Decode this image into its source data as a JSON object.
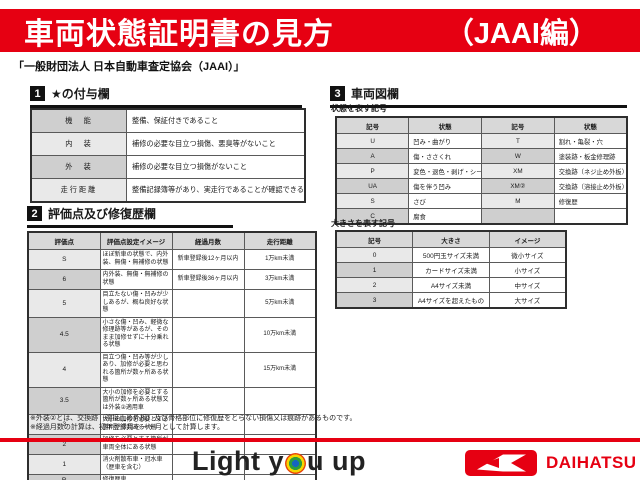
{
  "colors": {
    "accent_red": "#e60012",
    "badge_black": "#111111",
    "cell_gray": "#cfcfcf"
  },
  "header": {
    "title": "車両状態証明書の見方",
    "edition": "（JAAI編）",
    "subtitle": "「一般財団法人 日本自動車査定協会（JAAI）」"
  },
  "section1": {
    "number": "1",
    "title": "★の付与欄",
    "table": {
      "rows": [
        {
          "label": "機　能",
          "desc": "整備、保証付きであること"
        },
        {
          "label": "内　装",
          "desc": "補修の必要な目立つ損傷、悪臭等がないこと"
        },
        {
          "label": "外　装",
          "desc": "補修の必要な目立つ損傷がないこと"
        },
        {
          "label": "走行距離",
          "desc": "整備記録簿等があり、実走行であることが確認できること"
        }
      ]
    }
  },
  "section2": {
    "number": "2",
    "title": "評価点及び修復歴欄",
    "table": {
      "headers": [
        "評価点",
        "評価点設定イメージ",
        "経過月数",
        "走行距離"
      ],
      "rows": [
        {
          "score": "S",
          "image": "ほぼ新車の状態で、内外装、無傷・無補修の状態",
          "months": "新車登録後12ヶ月以内",
          "mileage": "1万km未満"
        },
        {
          "score": "6",
          "image": "内外装、無傷・無補修の状態",
          "months": "新車登録後36ヶ月以内",
          "mileage": "3万km未満"
        },
        {
          "score": "5",
          "image": "目立たない傷・凹みが少しあるが、概ね良好な状態",
          "months": "",
          "mileage": "5万km未満"
        },
        {
          "score": "4.5",
          "image": "小さな傷・凹み、軽微な修理跡等があるが、そのまま加修せずに十分乗れる状態",
          "months": "",
          "mileage": "10万km未満"
        },
        {
          "score": "4",
          "image": "目立つ傷・凹み等が少しあり、加修が必要と思われる箇所が数ヶ所ある状態",
          "months": "",
          "mileage": "15万km未満"
        },
        {
          "score": "3.5",
          "image": "大小の加修を必要とする箇所が数ヶ所ある状態又は外装②適用車",
          "months": "",
          "mileage": ""
        },
        {
          "score": "3",
          "image": "大小の加修を必要とする箇所が多数ある状態",
          "months": "",
          "mileage": ""
        },
        {
          "score": "2",
          "image": "加修を必要とする箇所が車両全体にある状態",
          "months": "",
          "mileage": ""
        },
        {
          "score": "1",
          "image": "消火剤散布車・冠水車（歴車を含む）",
          "months": "",
          "mileage": ""
        },
        {
          "score": "R",
          "image": "修復歴車",
          "months": "",
          "mileage": ""
        }
      ]
    }
  },
  "section3": {
    "number": "3",
    "title": "車両図欄",
    "condition_table": {
      "caption": "状態を表す記号",
      "headers": [
        "記号",
        "状態",
        "記号",
        "状態"
      ],
      "rows": [
        [
          "U",
          "凹み・曲がり",
          "T",
          "割れ・亀裂・穴"
        ],
        [
          "A",
          "傷・ささくれ",
          "W",
          "塗装跡・板金修理跡"
        ],
        [
          "P",
          "変色・退色・剥げ・シール（テープ）跡",
          "XM",
          "交換跡（ネジ止め外板）"
        ],
        [
          "UA",
          "傷を伴う凹み",
          "XM②",
          "交換跡（溶接止め外板）"
        ],
        [
          "S",
          "さび",
          "M",
          "修復歴"
        ],
        [
          "C",
          "腐食",
          "",
          ""
        ]
      ]
    },
    "size_table": {
      "caption": "大きさを表す記号",
      "headers": [
        "記号",
        "大きさ",
        "イメージ"
      ],
      "rows": [
        [
          "0",
          "500円玉サイズ未満",
          "微小サイズ"
        ],
        [
          "1",
          "カードサイズ未満",
          "小サイズ"
        ],
        [
          "2",
          "A4サイズ未満",
          "中サイズ"
        ],
        [
          "3",
          "A4サイズを超えたもの",
          "大サイズ"
        ]
      ]
    }
  },
  "notes": {
    "line1": "※外装②とは、交換跡（溶接止め外板）及び骨格部位に修復歴をとらない損傷又は痕跡があるものです。",
    "line2": "※経過月数の計算は、初年登録月を一ヶ月として計算します。"
  },
  "footer": {
    "slogan_left": "Light y",
    "slogan_right": "u up",
    "brand": "DAIHATSU"
  }
}
